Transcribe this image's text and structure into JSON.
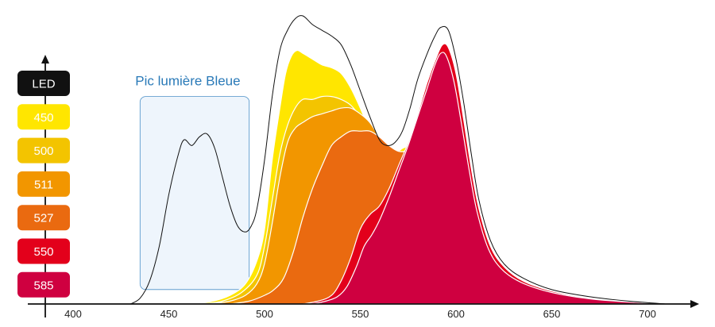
{
  "chart_data": {
    "type": "area",
    "title": "",
    "xlabel": "",
    "ylabel": "",
    "xlim": [
      380,
      730
    ],
    "ylim": [
      0,
      1
    ],
    "x_ticks": [
      400,
      450,
      500,
      550,
      600,
      650,
      700
    ],
    "grid": false,
    "legend_position": "left",
    "annotation": {
      "text": "Pic lumière Bleue",
      "x_range": [
        435,
        492
      ],
      "y_range": [
        0.05,
        0.72
      ]
    },
    "series": [
      {
        "name": "LED",
        "color": "#111111",
        "style": "outline",
        "points": [
          [
            430,
            0
          ],
          [
            435,
            0.02
          ],
          [
            440,
            0.08
          ],
          [
            445,
            0.2
          ],
          [
            450,
            0.38
          ],
          [
            455,
            0.52
          ],
          [
            458,
            0.57
          ],
          [
            462,
            0.55
          ],
          [
            466,
            0.58
          ],
          [
            470,
            0.59
          ],
          [
            474,
            0.54
          ],
          [
            478,
            0.44
          ],
          [
            482,
            0.34
          ],
          [
            486,
            0.27
          ],
          [
            490,
            0.25
          ],
          [
            493,
            0.27
          ],
          [
            496,
            0.33
          ],
          [
            500,
            0.5
          ],
          [
            504,
            0.72
          ],
          [
            508,
            0.88
          ],
          [
            512,
            0.95
          ],
          [
            516,
            0.99
          ],
          [
            520,
            1.0
          ],
          [
            525,
            0.97
          ],
          [
            530,
            0.95
          ],
          [
            535,
            0.93
          ],
          [
            540,
            0.9
          ],
          [
            545,
            0.83
          ],
          [
            550,
            0.74
          ],
          [
            555,
            0.65
          ],
          [
            560,
            0.57
          ],
          [
            564,
            0.55
          ],
          [
            568,
            0.56
          ],
          [
            572,
            0.6
          ],
          [
            576,
            0.68
          ],
          [
            580,
            0.78
          ],
          [
            585,
            0.87
          ],
          [
            589,
            0.93
          ],
          [
            592,
            0.96
          ],
          [
            596,
            0.95
          ],
          [
            600,
            0.85
          ],
          [
            604,
            0.7
          ],
          [
            608,
            0.52
          ],
          [
            612,
            0.36
          ],
          [
            618,
            0.22
          ],
          [
            625,
            0.14
          ],
          [
            635,
            0.09
          ],
          [
            650,
            0.05
          ],
          [
            670,
            0.025
          ],
          [
            690,
            0.01
          ],
          [
            710,
            0
          ]
        ]
      },
      {
        "name": "450",
        "color": "#ffe600",
        "points": [
          [
            462,
            0
          ],
          [
            472,
            0.008
          ],
          [
            482,
            0.03
          ],
          [
            490,
            0.07
          ],
          [
            496,
            0.15
          ],
          [
            500,
            0.26
          ],
          [
            504,
            0.5
          ],
          [
            508,
            0.68
          ],
          [
            511,
            0.8
          ],
          [
            514,
            0.86
          ],
          [
            517,
            0.88
          ],
          [
            520,
            0.87
          ],
          [
            525,
            0.85
          ],
          [
            530,
            0.83
          ],
          [
            535,
            0.82
          ],
          [
            540,
            0.8
          ],
          [
            545,
            0.75
          ],
          [
            550,
            0.68
          ],
          [
            555,
            0.6
          ],
          [
            560,
            0.53
          ],
          [
            564,
            0.51
          ],
          [
            568,
            0.52
          ],
          [
            572,
            0.54
          ],
          [
            576,
            0.55
          ],
          [
            585,
            0.57
          ],
          [
            590,
            0.55
          ],
          [
            595,
            0.48
          ],
          [
            600,
            0.35
          ],
          [
            605,
            0.2
          ],
          [
            610,
            0.08
          ],
          [
            620,
            0.02
          ],
          [
            640,
            0
          ]
        ]
      },
      {
        "name": "500",
        "color": "#f3c400",
        "points": [
          [
            468,
            0
          ],
          [
            478,
            0.01
          ],
          [
            488,
            0.04
          ],
          [
            496,
            0.1
          ],
          [
            500,
            0.2
          ],
          [
            504,
            0.36
          ],
          [
            508,
            0.52
          ],
          [
            512,
            0.62
          ],
          [
            516,
            0.68
          ],
          [
            520,
            0.71
          ],
          [
            525,
            0.71
          ],
          [
            530,
            0.72
          ],
          [
            535,
            0.72
          ],
          [
            540,
            0.71
          ],
          [
            545,
            0.69
          ],
          [
            550,
            0.65
          ],
          [
            555,
            0.6
          ],
          [
            560,
            0.55
          ],
          [
            565,
            0.52
          ],
          [
            570,
            0.52
          ],
          [
            576,
            0.54
          ],
          [
            585,
            0.55
          ],
          [
            590,
            0.53
          ],
          [
            595,
            0.46
          ],
          [
            600,
            0.33
          ],
          [
            605,
            0.18
          ],
          [
            610,
            0.07
          ],
          [
            620,
            0.02
          ],
          [
            640,
            0
          ]
        ]
      },
      {
        "name": "511",
        "color": "#f29600",
        "points": [
          [
            472,
            0
          ],
          [
            482,
            0.01
          ],
          [
            490,
            0.03
          ],
          [
            496,
            0.07
          ],
          [
            500,
            0.14
          ],
          [
            504,
            0.28
          ],
          [
            508,
            0.44
          ],
          [
            512,
            0.56
          ],
          [
            516,
            0.61
          ],
          [
            520,
            0.63
          ],
          [
            525,
            0.65
          ],
          [
            530,
            0.66
          ],
          [
            535,
            0.67
          ],
          [
            540,
            0.68
          ],
          [
            545,
            0.68
          ],
          [
            550,
            0.66
          ],
          [
            555,
            0.63
          ],
          [
            560,
            0.58
          ],
          [
            565,
            0.54
          ],
          [
            570,
            0.52
          ],
          [
            576,
            0.53
          ],
          [
            585,
            0.54
          ],
          [
            590,
            0.52
          ],
          [
            595,
            0.45
          ],
          [
            600,
            0.32
          ],
          [
            605,
            0.17
          ],
          [
            610,
            0.07
          ],
          [
            620,
            0.02
          ],
          [
            640,
            0
          ]
        ]
      },
      {
        "name": "527",
        "color": "#ea6a10",
        "points": [
          [
            482,
            0
          ],
          [
            492,
            0.01
          ],
          [
            500,
            0.03
          ],
          [
            505,
            0.05
          ],
          [
            510,
            0.09
          ],
          [
            515,
            0.18
          ],
          [
            520,
            0.3
          ],
          [
            525,
            0.4
          ],
          [
            530,
            0.48
          ],
          [
            535,
            0.55
          ],
          [
            540,
            0.58
          ],
          [
            545,
            0.6
          ],
          [
            550,
            0.6
          ],
          [
            555,
            0.6
          ],
          [
            560,
            0.58
          ],
          [
            565,
            0.55
          ],
          [
            570,
            0.53
          ],
          [
            576,
            0.53
          ],
          [
            585,
            0.53
          ],
          [
            590,
            0.51
          ],
          [
            595,
            0.44
          ],
          [
            600,
            0.31
          ],
          [
            605,
            0.16
          ],
          [
            610,
            0.06
          ],
          [
            620,
            0.02
          ],
          [
            640,
            0
          ]
        ]
      },
      {
        "name": "550",
        "color": "#e3001b",
        "points": [
          [
            520,
            0
          ],
          [
            528,
            0.01
          ],
          [
            535,
            0.03
          ],
          [
            540,
            0.08
          ],
          [
            545,
            0.16
          ],
          [
            550,
            0.26
          ],
          [
            555,
            0.31
          ],
          [
            560,
            0.34
          ],
          [
            565,
            0.4
          ],
          [
            570,
            0.48
          ],
          [
            575,
            0.56
          ],
          [
            580,
            0.66
          ],
          [
            585,
            0.77
          ],
          [
            590,
            0.86
          ],
          [
            593,
            0.9
          ],
          [
            596,
            0.89
          ],
          [
            600,
            0.8
          ],
          [
            604,
            0.64
          ],
          [
            608,
            0.47
          ],
          [
            612,
            0.33
          ],
          [
            618,
            0.2
          ],
          [
            625,
            0.13
          ],
          [
            635,
            0.08
          ],
          [
            650,
            0.045
          ],
          [
            670,
            0.02
          ],
          [
            690,
            0.008
          ],
          [
            710,
            0
          ]
        ]
      },
      {
        "name": "585",
        "color": "#cf0040",
        "points": [
          [
            525,
            0
          ],
          [
            532,
            0.01
          ],
          [
            538,
            0.025
          ],
          [
            543,
            0.06
          ],
          [
            548,
            0.13
          ],
          [
            552,
            0.2
          ],
          [
            556,
            0.24
          ],
          [
            560,
            0.29
          ],
          [
            565,
            0.37
          ],
          [
            570,
            0.46
          ],
          [
            575,
            0.55
          ],
          [
            580,
            0.65
          ],
          [
            585,
            0.75
          ],
          [
            589,
            0.83
          ],
          [
            592,
            0.87
          ],
          [
            595,
            0.86
          ],
          [
            599,
            0.77
          ],
          [
            603,
            0.62
          ],
          [
            607,
            0.46
          ],
          [
            611,
            0.32
          ],
          [
            617,
            0.19
          ],
          [
            624,
            0.12
          ],
          [
            634,
            0.075
          ],
          [
            650,
            0.04
          ],
          [
            670,
            0.018
          ],
          [
            690,
            0.007
          ],
          [
            710,
            0
          ]
        ]
      }
    ]
  }
}
